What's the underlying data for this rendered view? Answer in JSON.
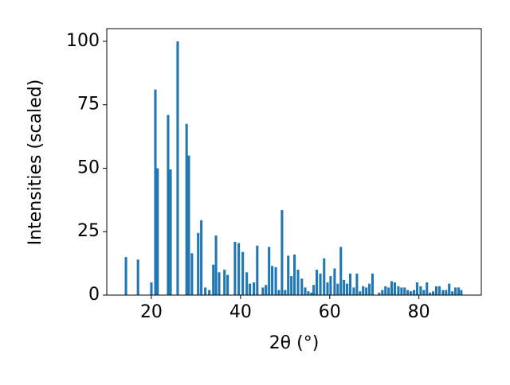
{
  "chart_data": {
    "type": "bar",
    "xlabel": "2θ (°)",
    "ylabel": "Intensities (scaled)",
    "color": "#1f77b4",
    "xlim": [
      10,
      94
    ],
    "ylim": [
      0,
      105
    ],
    "xticks": [
      20,
      40,
      60,
      80
    ],
    "yticks": [
      0,
      25,
      50,
      75,
      100
    ],
    "x": [
      14.3,
      17.0,
      20.0,
      20.9,
      21.4,
      23.75,
      24.3,
      25.9,
      27.9,
      28.4,
      29.1,
      30.5,
      31.2,
      32.1,
      33.0,
      33.9,
      34.5,
      35.2,
      36.4,
      37.1,
      38.75,
      39.6,
      40.5,
      41.4,
      42.1,
      43.0,
      43.75,
      45.0,
      45.7,
      46.4,
      47.1,
      47.9,
      48.6,
      49.3,
      50.0,
      50.7,
      51.4,
      52.1,
      52.9,
      53.75,
      54.5,
      55.2,
      55.9,
      56.4,
      57.1,
      57.9,
      58.75,
      59.5,
      60.2,
      61.1,
      61.8,
      62.5,
      63.2,
      63.9,
      64.6,
      65.4,
      66.1,
      66.8,
      67.5,
      68.2,
      68.9,
      69.6,
      71.1,
      71.8,
      72.5,
      73.2,
      73.9,
      74.6,
      75.4,
      76.1,
      76.8,
      77.5,
      78.2,
      78.9,
      79.6,
      80.4,
      81.1,
      81.8,
      82.5,
      83.2,
      83.9,
      84.6,
      85.4,
      86.1,
      86.8,
      87.5,
      88.2,
      88.9,
      89.5
    ],
    "values": [
      15,
      14,
      5,
      81,
      50,
      71,
      49.5,
      100,
      67.5,
      55,
      16.5,
      24.5,
      29.5,
      3,
      2,
      12,
      23.5,
      9,
      10,
      8,
      21,
      20.5,
      17,
      9,
      4.5,
      5,
      19.5,
      3,
      4,
      19,
      11.5,
      11,
      2,
      33.5,
      2,
      15.5,
      7.5,
      16,
      10,
      6.5,
      3,
      1.5,
      1,
      4,
      10,
      8.5,
      14.5,
      5,
      7.5,
      10.5,
      4.5,
      19,
      6,
      4.5,
      8.5,
      3,
      8.5,
      1.5,
      3.5,
      3,
      4.5,
      8.5,
      1,
      2,
      3.5,
      3,
      5.5,
      5,
      3.5,
      3,
      3,
      2,
      1.5,
      2,
      5,
      3.5,
      2,
      5,
      1,
      1.5,
      3.5,
      3.5,
      2,
      2,
      4.5,
      1.5,
      3,
      3,
      2
    ]
  }
}
